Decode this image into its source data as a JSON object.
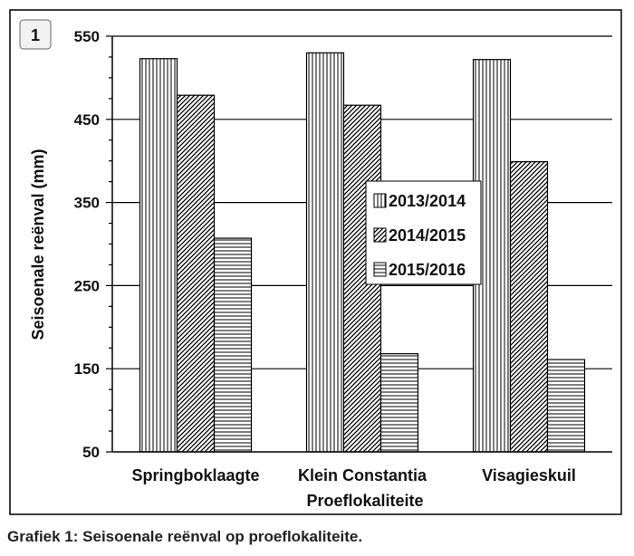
{
  "figure": {
    "number_badge": "1",
    "caption": "Grafiek 1: Seisoenale reënval op proeflokaliteite."
  },
  "chart_data": {
    "type": "bar",
    "title": "",
    "xlabel": "Proeflokaliteite",
    "ylabel": "Seisoenale reënval (mm)",
    "categories": [
      "Springboklaagte",
      "Klein Constantia",
      "Visagieskuil"
    ],
    "series": [
      {
        "name": "2013/2014",
        "values": [
          523,
          530,
          522
        ],
        "pattern": "vertical-lines"
      },
      {
        "name": "2014/2015",
        "values": [
          479,
          467,
          399
        ],
        "pattern": "diagonal-lines"
      },
      {
        "name": "2015/2016",
        "values": [
          307,
          168,
          161
        ],
        "pattern": "horizontal-lines"
      }
    ],
    "ylim": [
      50,
      550
    ],
    "yticks": [
      50,
      150,
      250,
      350,
      450,
      550
    ],
    "ytick_labels": [
      "50",
      "150",
      "250",
      "350",
      "450",
      "550"
    ],
    "grid": true,
    "legend_position": "center-right",
    "colors": {
      "bar_fill": "#ffffff",
      "bar_stroke": "#000000",
      "frame": "#000000",
      "badge_bg": "#f2f2f2"
    }
  }
}
